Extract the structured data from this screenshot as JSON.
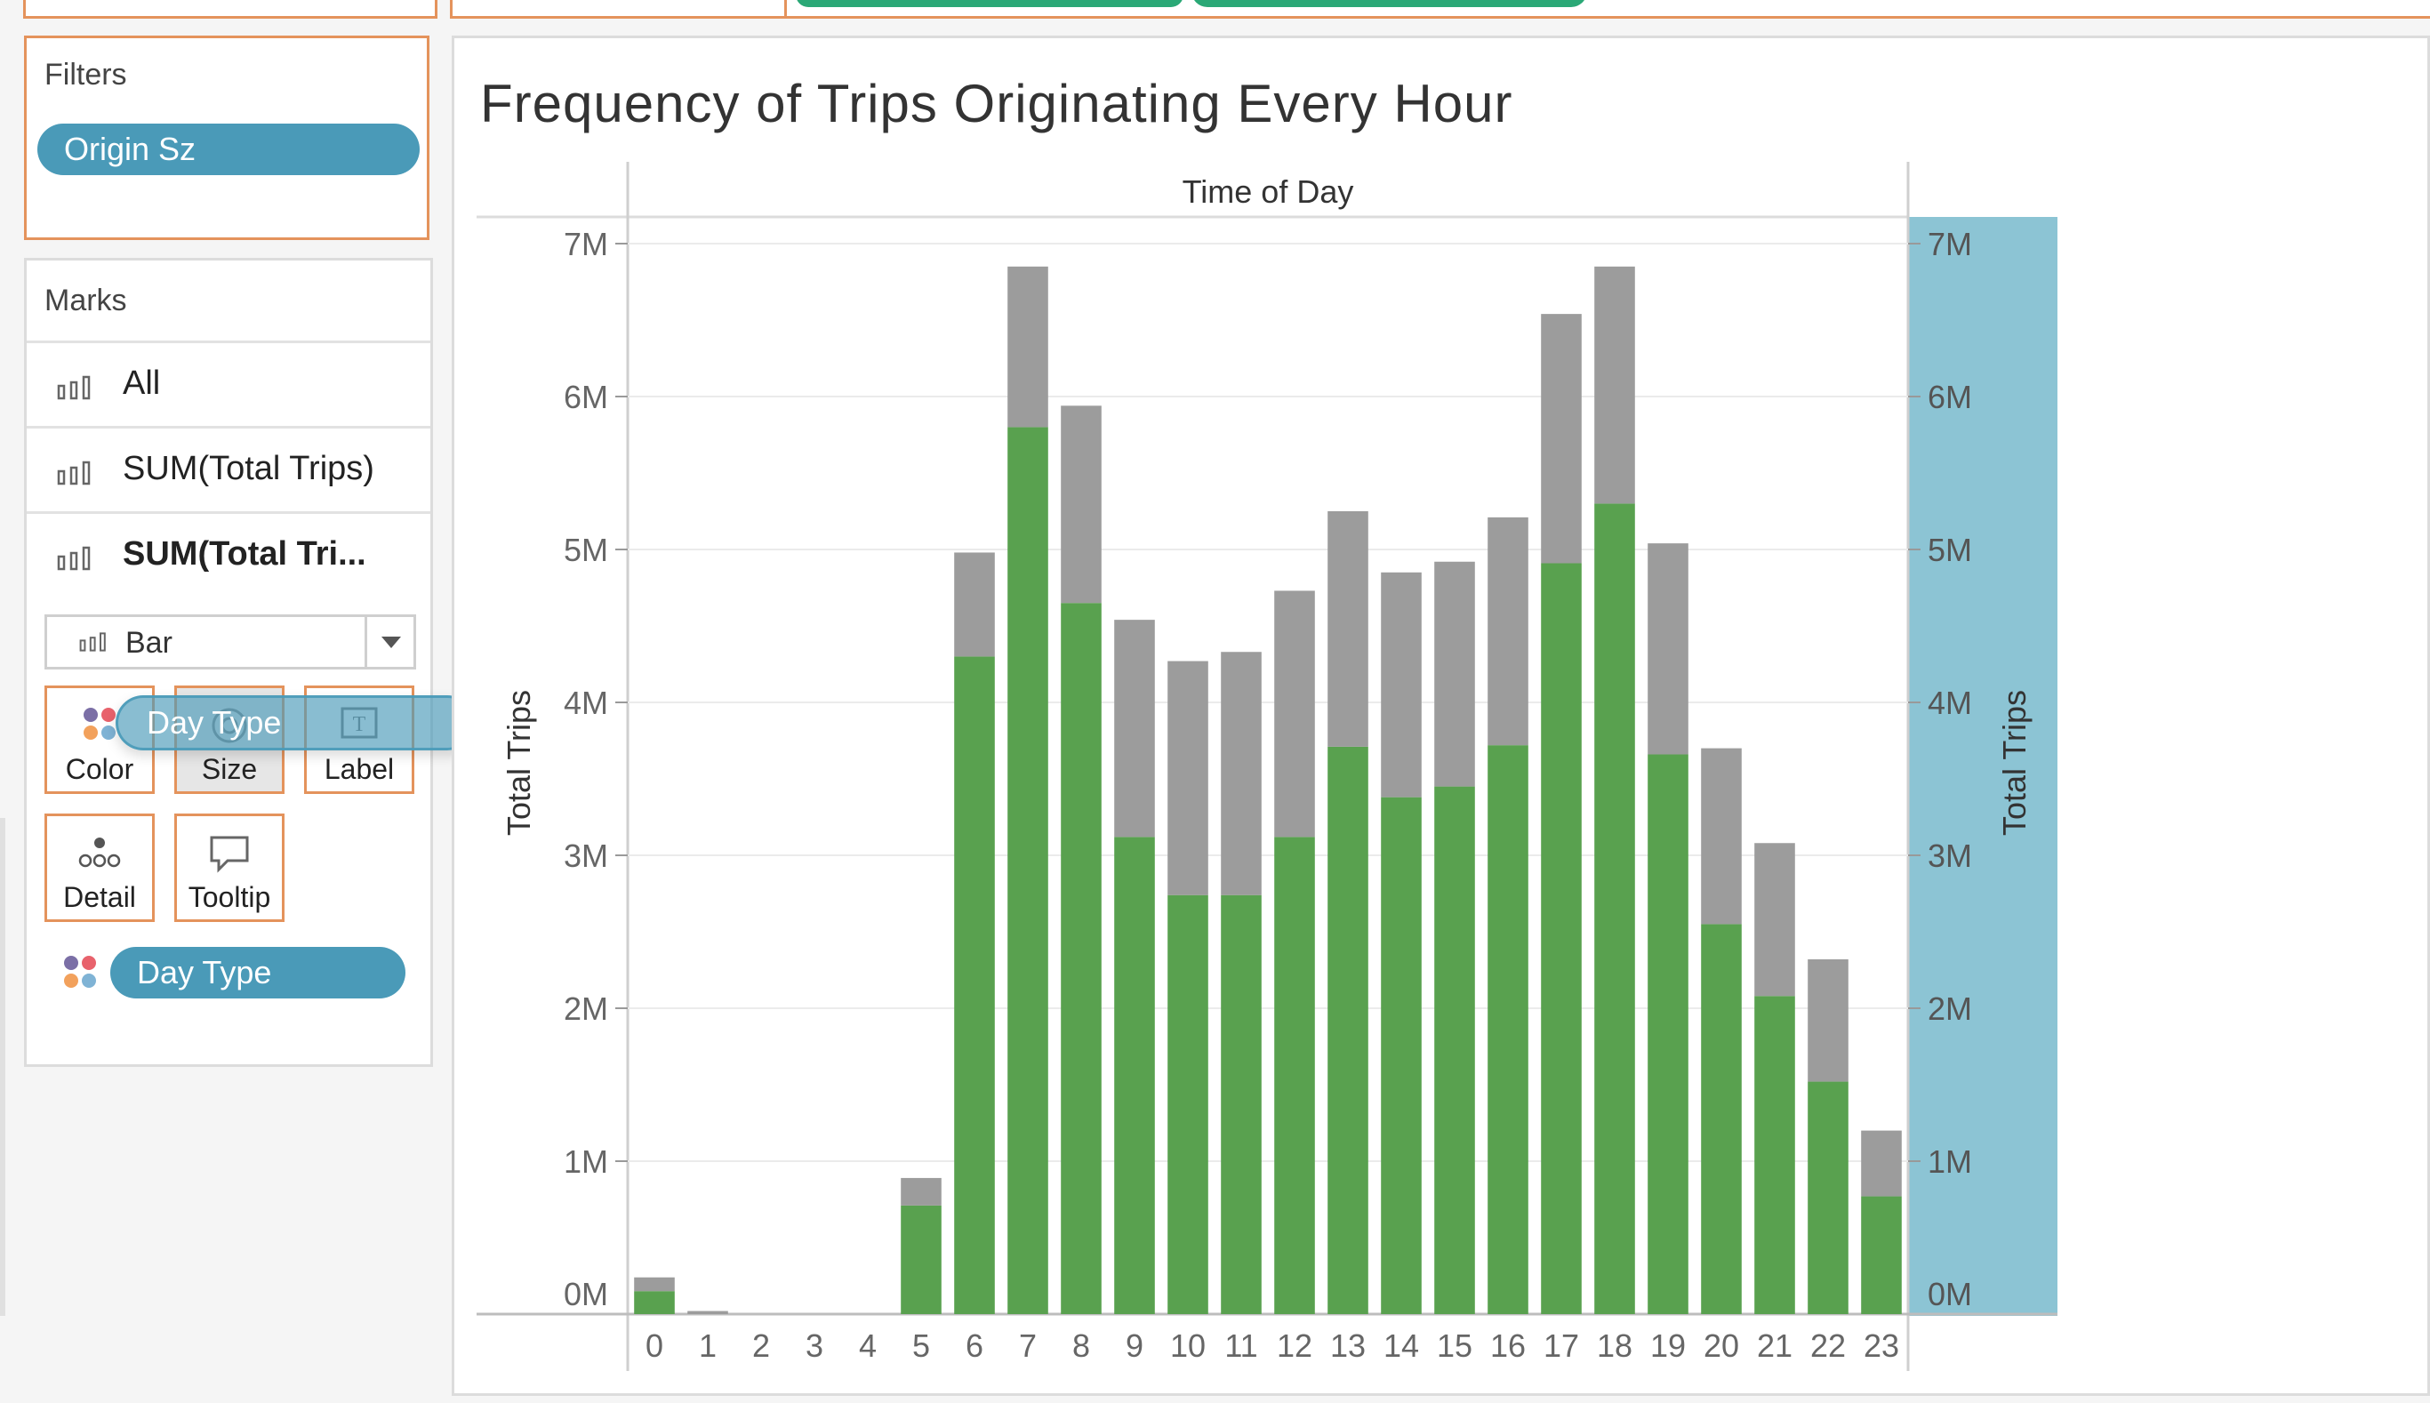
{
  "filters": {
    "title": "Filters",
    "pill_label": "Origin Sz"
  },
  "marks": {
    "title": "Marks",
    "rows": [
      {
        "label": "All",
        "icon": "bar-chart-icon"
      },
      {
        "label": "SUM(Total Trips)",
        "icon": "bar-chart-icon"
      },
      {
        "label": "SUM(Total Tri...",
        "icon": "bar-chart-icon"
      }
    ],
    "mark_type": "Bar",
    "buttons": {
      "color": "Color",
      "size": "Size",
      "label": "Label",
      "detail": "Detail",
      "tooltip": "Tooltip"
    },
    "color_field": "Day Type",
    "dragging_pill": "Day Type"
  },
  "colors": {
    "accent_orange": "#e4935c",
    "pill_blue": "#4a9ab8",
    "bar_green": "#59a14f",
    "bar_gray": "#9c9c9c",
    "axis_highlight": "#8cc4d4"
  },
  "chart_data": {
    "type": "bar",
    "title": "Frequency of Trips Originating Every Hour",
    "column_header": "Time of Day",
    "ylabel_left": "Total Trips",
    "ylabel_right": "Total Trips",
    "ylim": [
      0,
      7000000
    ],
    "yticks": [
      "0M",
      "1M",
      "2M",
      "3M",
      "4M",
      "5M",
      "6M",
      "7M"
    ],
    "categories": [
      "0",
      "1",
      "2",
      "3",
      "4",
      "5",
      "6",
      "7",
      "8",
      "9",
      "10",
      "11",
      "12",
      "13",
      "14",
      "15",
      "16",
      "17",
      "18",
      "19",
      "20",
      "21",
      "22",
      "23"
    ],
    "series": [
      {
        "color": "#59a14f",
        "values": [
          150000,
          0,
          0,
          0,
          0,
          710000,
          4300000,
          5800000,
          4650000,
          3120000,
          2740000,
          2740000,
          3120000,
          3710000,
          3380000,
          3450000,
          3720000,
          4910000,
          5300000,
          3660000,
          2550000,
          2080000,
          1520000,
          770000
        ]
      },
      {
        "color": "#9c9c9c",
        "values": [
          90000,
          20000,
          0,
          0,
          0,
          180000,
          680000,
          1050000,
          1290000,
          1420000,
          1530000,
          1590000,
          1610000,
          1540000,
          1470000,
          1470000,
          1490000,
          1630000,
          1550000,
          1380000,
          1150000,
          1000000,
          800000,
          430000
        ]
      }
    ],
    "stacked": true,
    "grid": true,
    "right_axis_highlighted": true
  }
}
